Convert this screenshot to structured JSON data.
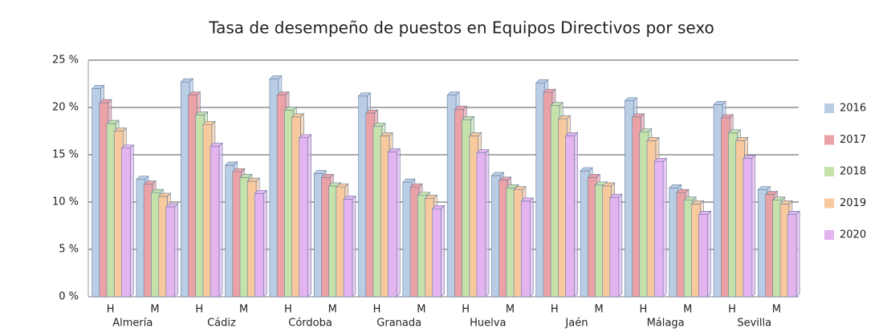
{
  "chart_data": {
    "type": "bar",
    "title": "Tasa de desempeño de puestos en Equipos Directivos por sexo",
    "categories": [
      "H",
      "M",
      "H",
      "M",
      "H",
      "M",
      "H",
      "M",
      "H",
      "M",
      "H",
      "M",
      "H",
      "M",
      "H",
      "M"
    ],
    "groups": [
      "Almería",
      "Cádiz",
      "Córdoba",
      "Granada",
      "Huelva",
      "Jaén",
      "Málaga",
      "Sevilla"
    ],
    "series": [
      {
        "name": "2016",
        "color": "#b9cde5",
        "values": [
          22.0,
          12.4,
          22.7,
          13.9,
          23.0,
          13.0,
          21.2,
          12.1,
          21.3,
          12.8,
          22.6,
          13.3,
          20.7,
          11.5,
          20.3,
          11.3
        ]
      },
      {
        "name": "2017",
        "color": "#eba2a6",
        "values": [
          20.5,
          11.9,
          21.3,
          13.2,
          21.3,
          12.6,
          19.4,
          11.6,
          19.8,
          12.3,
          21.6,
          12.6,
          19.0,
          11.0,
          18.9,
          10.8
        ]
      },
      {
        "name": "2018",
        "color": "#c6e2ab",
        "values": [
          18.3,
          11.0,
          19.2,
          12.6,
          19.7,
          11.7,
          18.0,
          10.7,
          18.7,
          11.5,
          20.2,
          11.8,
          17.4,
          10.2,
          17.3,
          10.2
        ]
      },
      {
        "name": "2019",
        "color": "#f7c99d",
        "values": [
          17.5,
          10.6,
          18.2,
          12.2,
          19.0,
          11.6,
          17.0,
          10.4,
          17.0,
          11.3,
          18.8,
          11.7,
          16.5,
          9.8,
          16.5,
          9.8
        ]
      },
      {
        "name": "2020",
        "color": "#e3b4f0",
        "values": [
          15.7,
          9.5,
          15.9,
          10.9,
          16.8,
          10.3,
          15.3,
          9.3,
          15.2,
          10.1,
          17.0,
          10.5,
          14.3,
          8.7,
          14.6,
          8.7
        ]
      }
    ],
    "ylim": [
      0,
      25
    ],
    "yticks": [
      {
        "value": 0,
        "label": "0 %"
      },
      {
        "value": 5,
        "label": "5 %"
      },
      {
        "value": 10,
        "label": "10 %"
      },
      {
        "value": 15,
        "label": "15 %"
      },
      {
        "value": 20,
        "label": "20 %"
      },
      {
        "value": 25,
        "label": "25 %"
      }
    ],
    "grid": true,
    "legend": "right"
  }
}
